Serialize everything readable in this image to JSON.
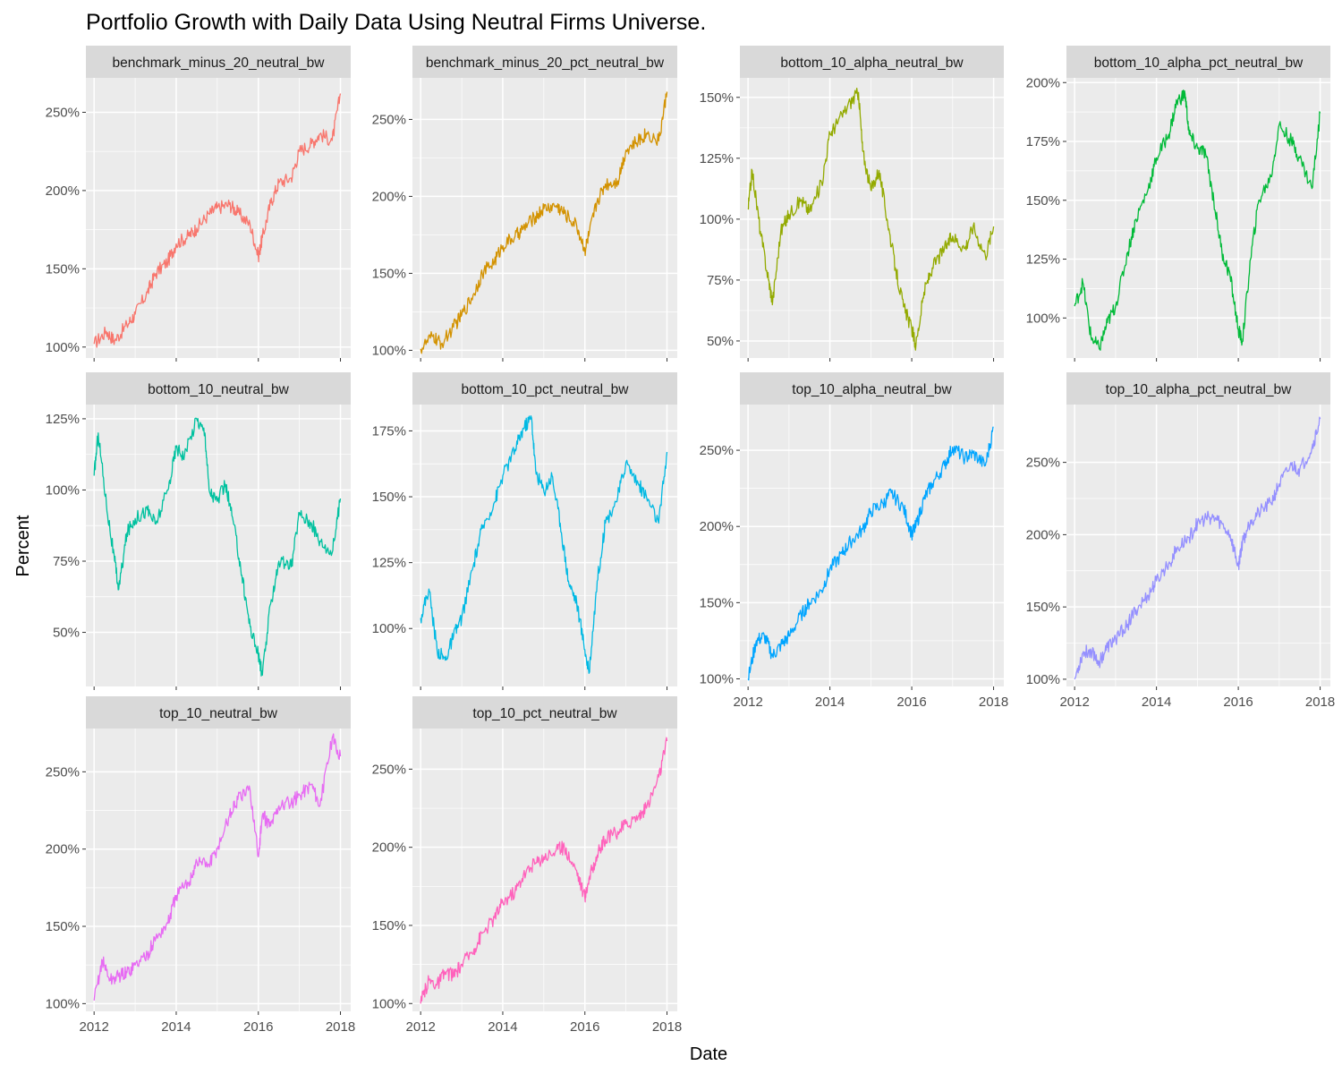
{
  "title": "Portfolio Growth with Daily Data Using Neutral Firms Universe.",
  "xlabel": "Date",
  "ylabel": "Percent",
  "chart_data": {
    "type": "line",
    "facets": "wrap",
    "scales": "free_y",
    "grid": true,
    "panel_background": "#EBEBEB",
    "strip_background": "#D9D9D9",
    "x_ticks": [
      2012,
      2014,
      2016,
      2018
    ],
    "xlim": [
      2011.8,
      2018.25
    ],
    "y_unit": "%",
    "panels": [
      {
        "name": "benchmark_minus_20_neutral_bw",
        "color": "#F8766D",
        "ylim": [
          93,
          272
        ],
        "y_ticks": [
          100,
          150,
          200,
          250
        ],
        "y_tick_labels": [
          "100%",
          "150%",
          "200%",
          "250%"
        ],
        "x": [
          2012.0,
          2012.3,
          2012.5,
          2012.8,
          2013.0,
          2013.3,
          2013.5,
          2013.8,
          2014.0,
          2014.3,
          2014.5,
          2014.8,
          2015.0,
          2015.3,
          2015.5,
          2015.8,
          2016.0,
          2016.1,
          2016.3,
          2016.5,
          2016.8,
          2017.0,
          2017.3,
          2017.5,
          2017.8,
          2018.0
        ],
        "y": [
          102,
          110,
          104,
          114,
          121,
          135,
          147,
          155,
          166,
          171,
          176,
          185,
          189,
          191,
          186,
          178,
          158,
          170,
          192,
          205,
          208,
          225,
          230,
          236,
          232,
          262
        ]
      },
      {
        "name": "benchmark_minus_20_pct_neutral_bw",
        "color": "#D39200",
        "ylim": [
          95,
          277
        ],
        "y_ticks": [
          100,
          150,
          200,
          250
        ],
        "y_tick_labels": [
          "100%",
          "150%",
          "200%",
          "250%"
        ],
        "x": [
          2012.0,
          2012.3,
          2012.5,
          2012.8,
          2013.0,
          2013.3,
          2013.5,
          2013.8,
          2014.0,
          2014.3,
          2014.5,
          2014.8,
          2015.0,
          2015.3,
          2015.5,
          2015.8,
          2016.0,
          2016.1,
          2016.3,
          2016.5,
          2016.8,
          2017.0,
          2017.3,
          2017.5,
          2017.8,
          2018.0
        ],
        "y": [
          101,
          109,
          104,
          115,
          123,
          137,
          150,
          158,
          168,
          174,
          179,
          187,
          192,
          194,
          189,
          181,
          165,
          175,
          197,
          208,
          210,
          230,
          236,
          241,
          236,
          268
        ]
      },
      {
        "name": "bottom_10_alpha_neutral_bw",
        "color": "#93AA00",
        "ylim": [
          43,
          158
        ],
        "y_ticks": [
          50,
          75,
          100,
          125,
          150
        ],
        "y_tick_labels": [
          "50%",
          "75%",
          "100%",
          "125%",
          "150%"
        ],
        "x": [
          2012.0,
          2012.1,
          2012.3,
          2012.5,
          2012.6,
          2012.8,
          2013.0,
          2013.3,
          2013.5,
          2013.8,
          2014.0,
          2014.2,
          2014.5,
          2014.7,
          2014.8,
          2015.0,
          2015.2,
          2015.4,
          2015.6,
          2015.8,
          2016.0,
          2016.1,
          2016.3,
          2016.5,
          2016.8,
          2017.0,
          2017.3,
          2017.5,
          2017.8,
          2018.0
        ],
        "y": [
          104,
          120,
          95,
          75,
          66,
          95,
          102,
          108,
          103,
          115,
          135,
          140,
          148,
          152,
          128,
          112,
          120,
          100,
          80,
          64,
          55,
          48,
          70,
          80,
          88,
          93,
          88,
          97,
          85,
          97
        ]
      },
      {
        "name": "bottom_10_alpha_pct_neutral_bw",
        "color": "#00BA38",
        "ylim": [
          83,
          202
        ],
        "y_ticks": [
          100,
          125,
          150,
          175,
          200
        ],
        "y_tick_labels": [
          "100%",
          "125%",
          "150%",
          "175%",
          "200%"
        ],
        "x": [
          2012.0,
          2012.2,
          2012.4,
          2012.6,
          2012.8,
          2013.0,
          2013.3,
          2013.5,
          2013.8,
          2014.0,
          2014.3,
          2014.5,
          2014.7,
          2014.8,
          2015.0,
          2015.2,
          2015.4,
          2015.6,
          2015.8,
          2016.0,
          2016.1,
          2016.3,
          2016.5,
          2016.8,
          2017.0,
          2017.3,
          2017.5,
          2017.8,
          2018.0
        ],
        "y": [
          105,
          115,
          92,
          87,
          98,
          105,
          128,
          142,
          155,
          168,
          178,
          192,
          195,
          178,
          172,
          170,
          150,
          128,
          118,
          95,
          90,
          125,
          150,
          160,
          182,
          175,
          168,
          155,
          187
        ]
      },
      {
        "name": "bottom_10_neutral_bw",
        "color": "#00C19F",
        "ylim": [
          31,
          130
        ],
        "y_ticks": [
          50,
          75,
          100,
          125
        ],
        "y_tick_labels": [
          "50%",
          "75%",
          "100%",
          "125%"
        ],
        "x": [
          2012.0,
          2012.1,
          2012.3,
          2012.5,
          2012.6,
          2012.8,
          2013.0,
          2013.3,
          2013.5,
          2013.8,
          2014.0,
          2014.2,
          2014.5,
          2014.7,
          2014.8,
          2015.0,
          2015.2,
          2015.4,
          2015.6,
          2015.8,
          2016.0,
          2016.1,
          2016.3,
          2016.5,
          2016.8,
          2017.0,
          2017.3,
          2017.5,
          2017.8,
          2018.0
        ],
        "y": [
          105,
          120,
          95,
          75,
          65,
          85,
          90,
          93,
          88,
          100,
          115,
          112,
          125,
          120,
          100,
          96,
          102,
          88,
          70,
          52,
          42,
          35,
          60,
          75,
          73,
          92,
          88,
          82,
          78,
          97
        ]
      },
      {
        "name": "bottom_10_pct_neutral_bw",
        "color": "#00B9E3",
        "ylim": [
          78,
          185
        ],
        "y_ticks": [
          100,
          125,
          150,
          175
        ],
        "y_tick_labels": [
          "100%",
          "125%",
          "150%",
          "175%"
        ],
        "x": [
          2012.0,
          2012.2,
          2012.4,
          2012.6,
          2012.8,
          2013.0,
          2013.3,
          2013.5,
          2013.8,
          2014.0,
          2014.3,
          2014.5,
          2014.7,
          2014.8,
          2015.0,
          2015.2,
          2015.4,
          2015.6,
          2015.8,
          2016.0,
          2016.1,
          2016.3,
          2016.5,
          2016.8,
          2017.0,
          2017.3,
          2017.5,
          2017.8,
          2018.0
        ],
        "y": [
          104,
          115,
          92,
          88,
          97,
          104,
          125,
          138,
          148,
          158,
          168,
          176,
          180,
          160,
          152,
          158,
          140,
          118,
          110,
          92,
          83,
          118,
          140,
          150,
          163,
          155,
          150,
          140,
          167
        ]
      },
      {
        "name": "top_10_alpha_neutral_bw",
        "color": "#00A5FF",
        "ylim": [
          95,
          280
        ],
        "y_ticks": [
          100,
          150,
          200,
          250
        ],
        "y_tick_labels": [
          "100%",
          "150%",
          "200%",
          "250%"
        ],
        "x": [
          2012.0,
          2012.2,
          2012.4,
          2012.6,
          2012.8,
          2013.0,
          2013.3,
          2013.5,
          2013.8,
          2014.0,
          2014.3,
          2014.5,
          2014.8,
          2015.0,
          2015.3,
          2015.5,
          2015.8,
          2016.0,
          2016.1,
          2016.3,
          2016.5,
          2016.8,
          2017.0,
          2017.3,
          2017.5,
          2017.8,
          2018.0
        ],
        "y": [
          100,
          125,
          128,
          115,
          122,
          128,
          142,
          150,
          158,
          172,
          182,
          190,
          198,
          210,
          215,
          222,
          212,
          195,
          200,
          218,
          228,
          240,
          252,
          245,
          248,
          240,
          265
        ]
      },
      {
        "name": "top_10_alpha_pct_neutral_bw",
        "color": "#9590FF",
        "ylim": [
          95,
          290
        ],
        "y_ticks": [
          100,
          150,
          200,
          250
        ],
        "y_tick_labels": [
          "100%",
          "150%",
          "200%",
          "250%"
        ],
        "x": [
          2012.0,
          2012.2,
          2012.4,
          2012.6,
          2012.8,
          2013.0,
          2013.3,
          2013.5,
          2013.8,
          2014.0,
          2014.3,
          2014.5,
          2014.8,
          2015.0,
          2015.3,
          2015.5,
          2015.8,
          2016.0,
          2016.1,
          2016.3,
          2016.5,
          2016.8,
          2017.0,
          2017.3,
          2017.5,
          2017.8,
          2018.0
        ],
        "y": [
          100,
          118,
          120,
          112,
          122,
          128,
          138,
          148,
          158,
          168,
          180,
          190,
          198,
          208,
          212,
          210,
          200,
          178,
          195,
          210,
          215,
          222,
          235,
          248,
          245,
          260,
          280
        ]
      },
      {
        "name": "top_10_neutral_bw",
        "color": "#E76BF3",
        "ylim": [
          95,
          278
        ],
        "y_ticks": [
          100,
          150,
          200,
          250
        ],
        "y_tick_labels": [
          "100%",
          "150%",
          "200%",
          "250%"
        ],
        "x": [
          2012.0,
          2012.2,
          2012.4,
          2012.6,
          2012.8,
          2013.0,
          2013.3,
          2013.5,
          2013.8,
          2014.0,
          2014.3,
          2014.5,
          2014.8,
          2015.0,
          2015.3,
          2015.5,
          2015.8,
          2016.0,
          2016.1,
          2016.3,
          2016.5,
          2016.8,
          2017.0,
          2017.3,
          2017.5,
          2017.8,
          2018.0
        ],
        "y": [
          102,
          128,
          115,
          118,
          120,
          125,
          132,
          142,
          152,
          170,
          178,
          192,
          190,
          200,
          222,
          232,
          238,
          195,
          222,
          215,
          228,
          230,
          235,
          242,
          228,
          272,
          260
        ]
      },
      {
        "name": "top_10_pct_neutral_bw",
        "color": "#FF62BC",
        "ylim": [
          95,
          276
        ],
        "y_ticks": [
          100,
          150,
          200,
          250
        ],
        "y_tick_labels": [
          "100%",
          "150%",
          "200%",
          "250%"
        ],
        "x": [
          2012.0,
          2012.2,
          2012.4,
          2012.6,
          2012.8,
          2013.0,
          2013.3,
          2013.5,
          2013.8,
          2014.0,
          2014.3,
          2014.5,
          2014.8,
          2015.0,
          2015.3,
          2015.5,
          2015.8,
          2016.0,
          2016.1,
          2016.3,
          2016.5,
          2016.8,
          2017.0,
          2017.3,
          2017.5,
          2017.8,
          2018.0
        ],
        "y": [
          100,
          115,
          112,
          120,
          118,
          125,
          135,
          145,
          155,
          165,
          172,
          182,
          190,
          194,
          198,
          200,
          185,
          168,
          180,
          195,
          205,
          210,
          215,
          220,
          225,
          245,
          268
        ]
      }
    ]
  }
}
